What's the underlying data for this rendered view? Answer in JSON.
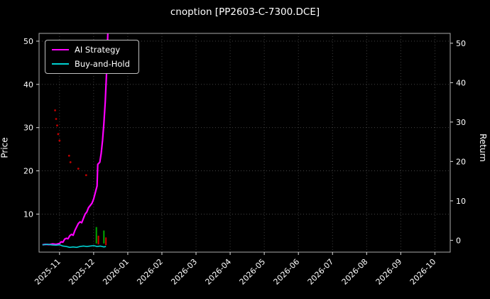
{
  "window": {
    "title": "cnoption [PP2603-C-7300.DCE]"
  },
  "chart_data": {
    "type": "line",
    "title": "cnoption [PP2603-C-7300.DCE]",
    "xlabel": "",
    "ylabel_left": "Price",
    "ylabel_right": "Return",
    "background": "#000000",
    "text_color": "#ffffff",
    "spine_color": "#aaaaaa",
    "grid": {
      "show": true,
      "style": "dotted",
      "color": "#4d4d4d"
    },
    "legend": {
      "position": "top-left",
      "items": [
        {
          "label": "AI Strategy",
          "color": "#ff00ff"
        },
        {
          "label": "Buy-and-Hold",
          "color": "#00d0d0"
        }
      ]
    },
    "x_axis": {
      "min": -0.6,
      "max": 11.45,
      "tick_values": [
        0,
        1,
        2,
        3,
        4,
        5,
        6,
        7,
        8,
        9,
        10,
        11
      ],
      "tick_labels": [
        "2025-11",
        "2025-12",
        "2026-01",
        "2026-02",
        "2026-03",
        "2026-04",
        "2026-05",
        "2026-06",
        "2026-07",
        "2026-08",
        "2026-09",
        "2026-10"
      ],
      "label_rotation": 45
    },
    "left_axis": {
      "label": "Price",
      "ticks": [
        10,
        20,
        30,
        40,
        50
      ],
      "min": 1.2,
      "max": 51.8
    },
    "right_axis": {
      "label": "Return",
      "ticks": [
        0,
        10,
        20,
        30,
        40,
        50
      ],
      "min": -3.0,
      "max": 52.5
    },
    "series": [
      {
        "name": "AI Strategy",
        "color": "#ff00ff",
        "width": 2.2,
        "axis": "left",
        "points": [
          [
            -0.5,
            2.9
          ],
          [
            -0.42,
            3.0
          ],
          [
            -0.3,
            2.95
          ],
          [
            -0.2,
            3.1
          ],
          [
            -0.1,
            3.0
          ],
          [
            0,
            3.2
          ],
          [
            0.05,
            3.6
          ],
          [
            0.1,
            3.5
          ],
          [
            0.15,
            4.2
          ],
          [
            0.2,
            4.4
          ],
          [
            0.25,
            4.3
          ],
          [
            0.3,
            5.0
          ],
          [
            0.35,
            5.3
          ],
          [
            0.4,
            5.1
          ],
          [
            0.45,
            6.2
          ],
          [
            0.5,
            7.0
          ],
          [
            0.55,
            7.8
          ],
          [
            0.6,
            8.2
          ],
          [
            0.65,
            8.0
          ],
          [
            0.7,
            9.0
          ],
          [
            0.75,
            10.0
          ],
          [
            0.8,
            10.5
          ],
          [
            0.85,
            11.5
          ],
          [
            0.9,
            12.0
          ],
          [
            0.95,
            12.5
          ],
          [
            1.0,
            13.5
          ],
          [
            1.05,
            15.0
          ],
          [
            1.1,
            16.5
          ],
          [
            1.12,
            21.5
          ],
          [
            1.18,
            22.0
          ],
          [
            1.22,
            24.0
          ],
          [
            1.26,
            27.0
          ],
          [
            1.3,
            31.0
          ],
          [
            1.34,
            36.0
          ],
          [
            1.38,
            43.0
          ],
          [
            1.42,
            53.0
          ]
        ]
      },
      {
        "name": "Buy-and-Hold",
        "color": "#00d0d0",
        "width": 1.6,
        "axis": "left",
        "points": [
          [
            -0.5,
            2.9
          ],
          [
            -0.35,
            3.0
          ],
          [
            -0.2,
            2.85
          ],
          [
            -0.1,
            2.8
          ],
          [
            0,
            2.9
          ],
          [
            0.1,
            2.6
          ],
          [
            0.2,
            2.5
          ],
          [
            0.3,
            2.3
          ],
          [
            0.4,
            2.4
          ],
          [
            0.5,
            2.3
          ],
          [
            0.6,
            2.5
          ],
          [
            0.7,
            2.6
          ],
          [
            0.8,
            2.5
          ],
          [
            0.9,
            2.6
          ],
          [
            1.0,
            2.7
          ],
          [
            1.1,
            2.5
          ],
          [
            1.2,
            2.6
          ],
          [
            1.3,
            2.4
          ],
          [
            1.36,
            2.5
          ]
        ]
      }
    ],
    "scatter": [
      {
        "name": "signal-dots",
        "color": "#c00000",
        "size": 1.4,
        "axis": "left",
        "points": [
          [
            -0.13,
            34.0
          ],
          [
            -0.1,
            32.0
          ],
          [
            -0.07,
            30.5
          ],
          [
            -0.04,
            28.5
          ],
          [
            0.0,
            27.0
          ],
          [
            0.28,
            23.5
          ],
          [
            0.32,
            22.0
          ],
          [
            0.55,
            20.5
          ],
          [
            0.78,
            19.0
          ]
        ]
      }
    ],
    "bars": [
      {
        "x": 1.08,
        "y0": 3.2,
        "y1": 7.0,
        "color": "#00a800"
      },
      {
        "x": 1.14,
        "y0": 3.0,
        "y1": 5.0,
        "color": "#d00000"
      },
      {
        "x": 1.3,
        "y0": 3.2,
        "y1": 6.2,
        "color": "#00a800"
      },
      {
        "x": 1.36,
        "y0": 2.8,
        "y1": 4.6,
        "color": "#d00000"
      }
    ]
  }
}
